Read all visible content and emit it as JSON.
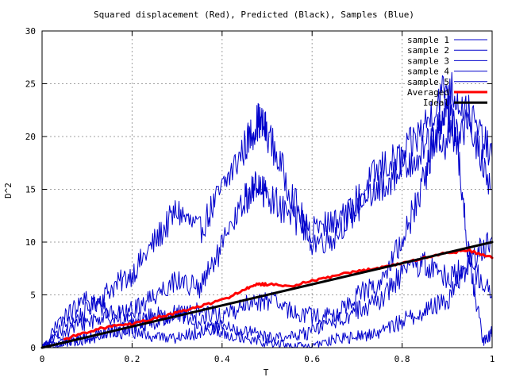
{
  "chart_data": {
    "type": "line",
    "title": "Squared displacement (Red), Predicted (Black), Samples (Blue)",
    "xlabel": "T",
    "ylabel": "D^2",
    "xlim": [
      0,
      1
    ],
    "ylim": [
      0,
      30
    ],
    "x_ticks": [
      "0",
      "0.2",
      "0.4",
      "0.6",
      "0.8",
      "1"
    ],
    "y_ticks": [
      "0",
      "5",
      "10",
      "15",
      "20",
      "25",
      "30"
    ],
    "grid": true,
    "legend_position": "top-right",
    "series": [
      {
        "name": "sample 1",
        "color": "#0000cc",
        "x": [
          0,
          0.05,
          0.1,
          0.15,
          0.2,
          0.25,
          0.3,
          0.35,
          0.4,
          0.45,
          0.48,
          0.5,
          0.55,
          0.6,
          0.65,
          0.7,
          0.75,
          0.8,
          0.85,
          0.9,
          0.95,
          1.0
        ],
        "y": [
          0,
          2.0,
          3.5,
          5.5,
          7.0,
          10.0,
          13.0,
          11.0,
          15.0,
          19.0,
          21.5,
          20.5,
          15.0,
          10.0,
          10.5,
          14.0,
          17.0,
          18.0,
          21.0,
          25.0,
          22.0,
          18.0
        ]
      },
      {
        "name": "sample 2",
        "color": "#0000cc",
        "x": [
          0,
          0.05,
          0.1,
          0.15,
          0.2,
          0.25,
          0.3,
          0.35,
          0.4,
          0.45,
          0.48,
          0.5,
          0.55,
          0.6,
          0.65,
          0.7,
          0.75,
          0.8,
          0.85,
          0.9,
          0.95,
          1.0
        ],
        "y": [
          0,
          1.5,
          2.5,
          3.0,
          3.5,
          5.0,
          6.5,
          5.5,
          9.5,
          14.0,
          15.5,
          14.5,
          12.5,
          11.0,
          12.0,
          13.0,
          15.0,
          17.0,
          19.0,
          19.5,
          21.0,
          15.0
        ]
      },
      {
        "name": "sample 3",
        "color": "#0000cc",
        "x": [
          0,
          0.05,
          0.1,
          0.15,
          0.2,
          0.25,
          0.3,
          0.35,
          0.4,
          0.45,
          0.5,
          0.55,
          0.6,
          0.65,
          0.7,
          0.75,
          0.8,
          0.85,
          0.88,
          0.9,
          0.92,
          0.95,
          0.98,
          1.0
        ],
        "y": [
          0,
          3.0,
          4.5,
          3.5,
          2.5,
          3.0,
          3.0,
          3.5,
          3.0,
          4.0,
          4.5,
          3.5,
          3.0,
          3.0,
          5.0,
          6.0,
          10.0,
          16.0,
          21.0,
          23.0,
          20.0,
          8.0,
          0.5,
          1.5
        ]
      },
      {
        "name": "sample 4",
        "color": "#0000cc",
        "x": [
          0,
          0.05,
          0.1,
          0.15,
          0.2,
          0.25,
          0.3,
          0.35,
          0.4,
          0.45,
          0.5,
          0.55,
          0.6,
          0.65,
          0.7,
          0.75,
          0.8,
          0.85,
          0.9,
          0.95,
          1.0
        ],
        "y": [
          0,
          0.5,
          0.8,
          1.5,
          2.0,
          2.5,
          3.5,
          2.5,
          1.5,
          1.0,
          0.5,
          0.2,
          0.1,
          0.8,
          1.0,
          1.5,
          2.5,
          3.5,
          4.5,
          8.0,
          10.5
        ]
      },
      {
        "name": "sample 5",
        "color": "#0000cc",
        "x": [
          0,
          0.05,
          0.1,
          0.15,
          0.2,
          0.25,
          0.3,
          0.35,
          0.4,
          0.45,
          0.5,
          0.55,
          0.6,
          0.65,
          0.7,
          0.75,
          0.8,
          0.85,
          0.9,
          0.95,
          1.0
        ],
        "y": [
          0,
          0.5,
          1.0,
          1.5,
          1.5,
          1.0,
          1.0,
          1.5,
          2.0,
          1.5,
          1.0,
          1.0,
          1.5,
          2.5,
          3.5,
          4.5,
          7.0,
          8.0,
          6.5,
          8.0,
          5.0
        ]
      },
      {
        "name": "Averaged",
        "color": "#ff0000",
        "x": [
          0.05,
          0.1,
          0.15,
          0.2,
          0.25,
          0.3,
          0.35,
          0.4,
          0.45,
          0.48,
          0.5,
          0.55,
          0.6,
          0.65,
          0.7,
          0.75,
          0.8,
          0.85,
          0.9,
          0.95,
          1.0
        ],
        "y": [
          0.8,
          1.5,
          2.0,
          2.2,
          2.8,
          3.3,
          3.9,
          4.5,
          5.5,
          6.0,
          6.0,
          5.8,
          6.3,
          6.8,
          7.2,
          7.6,
          8.0,
          8.5,
          9.0,
          9.2,
          8.5
        ]
      },
      {
        "name": "Ideal",
        "color": "#000000",
        "x": [
          0,
          1.0
        ],
        "y": [
          0,
          10
        ]
      }
    ]
  }
}
